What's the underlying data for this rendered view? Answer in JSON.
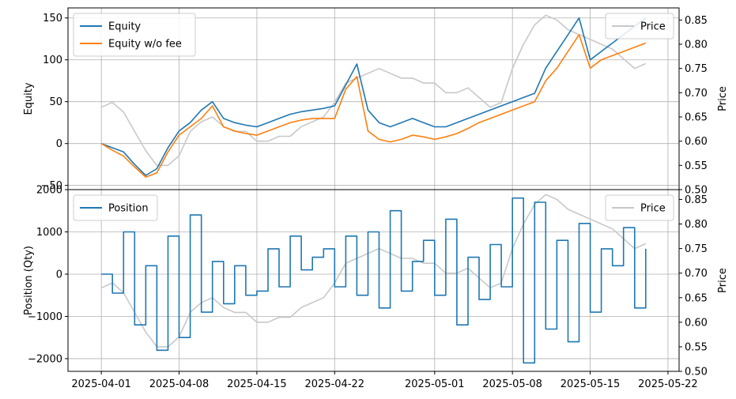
{
  "chart_data": [
    {
      "type": "line",
      "panel": "top",
      "title": "",
      "xlabel": "",
      "ylabel": "Equity",
      "y2label": "Price",
      "ylim": [
        -55,
        162
      ],
      "y2lim": [
        0.5,
        0.875
      ],
      "xlim": [
        "2025-03-29",
        "2025-05-23"
      ],
      "grid": true,
      "y_ticks": [
        -50,
        0,
        50,
        100,
        150
      ],
      "y2_ticks": [
        0.5,
        0.55,
        0.6,
        0.65,
        0.7,
        0.75,
        0.8,
        0.85
      ],
      "legend": {
        "left_position": "upper-left",
        "right_position": "upper-right"
      },
      "series": [
        {
          "name": "Equity",
          "axis": "left",
          "color": "#1f77b4",
          "x": [
            "2025-04-01",
            "2025-04-02",
            "2025-04-03",
            "2025-04-04",
            "2025-04-05",
            "2025-04-06",
            "2025-04-07",
            "2025-04-08",
            "2025-04-09",
            "2025-04-10",
            "2025-04-11",
            "2025-04-12",
            "2025-04-13",
            "2025-04-14",
            "2025-04-15",
            "2025-04-16",
            "2025-04-17",
            "2025-04-18",
            "2025-04-19",
            "2025-04-20",
            "2025-04-21",
            "2025-04-22",
            "2025-04-23",
            "2025-04-24",
            "2025-04-25",
            "2025-04-26",
            "2025-04-27",
            "2025-04-28",
            "2025-04-29",
            "2025-04-30",
            "2025-05-01",
            "2025-05-02",
            "2025-05-03",
            "2025-05-04",
            "2025-05-05",
            "2025-05-06",
            "2025-05-07",
            "2025-05-08",
            "2025-05-09",
            "2025-05-10",
            "2025-05-11",
            "2025-05-12",
            "2025-05-13",
            "2025-05-14",
            "2025-05-15",
            "2025-05-16",
            "2025-05-17",
            "2025-05-18",
            "2025-05-19",
            "2025-05-20"
          ],
          "y": [
            0,
            -5,
            -10,
            -25,
            -38,
            -30,
            -5,
            15,
            25,
            40,
            50,
            30,
            25,
            22,
            20,
            25,
            30,
            35,
            38,
            40,
            42,
            45,
            70,
            95,
            40,
            25,
            20,
            25,
            30,
            25,
            20,
            20,
            25,
            30,
            35,
            40,
            45,
            50,
            55,
            60,
            90,
            110,
            130,
            150,
            100,
            110,
            120,
            130,
            140,
            150
          ]
        },
        {
          "name": "Equity w/o fee",
          "axis": "left",
          "color": "#ff7f0e",
          "x": [
            "2025-04-01",
            "2025-04-02",
            "2025-04-03",
            "2025-04-04",
            "2025-04-05",
            "2025-04-06",
            "2025-04-07",
            "2025-04-08",
            "2025-04-09",
            "2025-04-10",
            "2025-04-11",
            "2025-04-12",
            "2025-04-13",
            "2025-04-14",
            "2025-04-15",
            "2025-04-16",
            "2025-04-17",
            "2025-04-18",
            "2025-04-19",
            "2025-04-20",
            "2025-04-21",
            "2025-04-22",
            "2025-04-23",
            "2025-04-24",
            "2025-04-25",
            "2025-04-26",
            "2025-04-27",
            "2025-04-28",
            "2025-04-29",
            "2025-04-30",
            "2025-05-01",
            "2025-05-02",
            "2025-05-03",
            "2025-05-04",
            "2025-05-05",
            "2025-05-06",
            "2025-05-07",
            "2025-05-08",
            "2025-05-09",
            "2025-05-10",
            "2025-05-11",
            "2025-05-12",
            "2025-05-13",
            "2025-05-14",
            "2025-05-15",
            "2025-05-16",
            "2025-05-17",
            "2025-05-18",
            "2025-05-19",
            "2025-05-20"
          ],
          "y": [
            0,
            -8,
            -15,
            -28,
            -40,
            -35,
            -10,
            10,
            20,
            30,
            45,
            20,
            15,
            12,
            10,
            15,
            20,
            25,
            28,
            30,
            30,
            30,
            65,
            80,
            15,
            5,
            2,
            5,
            10,
            8,
            5,
            8,
            12,
            18,
            25,
            30,
            35,
            40,
            45,
            50,
            75,
            90,
            110,
            130,
            90,
            100,
            105,
            110,
            115,
            120
          ]
        },
        {
          "name": "Price",
          "axis": "right",
          "color": "#c8c8c8",
          "x": [
            "2025-04-01",
            "2025-04-02",
            "2025-04-03",
            "2025-04-04",
            "2025-04-05",
            "2025-04-06",
            "2025-04-07",
            "2025-04-08",
            "2025-04-09",
            "2025-04-10",
            "2025-04-11",
            "2025-04-12",
            "2025-04-13",
            "2025-04-14",
            "2025-04-15",
            "2025-04-16",
            "2025-04-17",
            "2025-04-18",
            "2025-04-19",
            "2025-04-20",
            "2025-04-21",
            "2025-04-22",
            "2025-04-23",
            "2025-04-24",
            "2025-04-25",
            "2025-04-26",
            "2025-04-27",
            "2025-04-28",
            "2025-04-29",
            "2025-04-30",
            "2025-05-01",
            "2025-05-02",
            "2025-05-03",
            "2025-05-04",
            "2025-05-05",
            "2025-05-06",
            "2025-05-07",
            "2025-05-08",
            "2025-05-09",
            "2025-05-10",
            "2025-05-11",
            "2025-05-12",
            "2025-05-13",
            "2025-05-14",
            "2025-05-15",
            "2025-05-16",
            "2025-05-17",
            "2025-05-18",
            "2025-05-19",
            "2025-05-20"
          ],
          "y": [
            0.67,
            0.68,
            0.66,
            0.62,
            0.58,
            0.55,
            0.55,
            0.57,
            0.62,
            0.64,
            0.65,
            0.63,
            0.62,
            0.62,
            0.6,
            0.6,
            0.61,
            0.61,
            0.63,
            0.64,
            0.65,
            0.68,
            0.72,
            0.73,
            0.74,
            0.75,
            0.74,
            0.73,
            0.73,
            0.72,
            0.72,
            0.7,
            0.7,
            0.71,
            0.69,
            0.67,
            0.68,
            0.75,
            0.8,
            0.84,
            0.86,
            0.85,
            0.83,
            0.82,
            0.81,
            0.8,
            0.79,
            0.77,
            0.75,
            0.76
          ]
        }
      ]
    },
    {
      "type": "line",
      "panel": "bottom",
      "title": "",
      "xlabel": "",
      "ylabel": "Position (Qty)",
      "y2label": "Price",
      "ylim": [
        -2300,
        2000
      ],
      "y2lim": [
        0.5,
        0.87
      ],
      "xlim": [
        "2025-03-29",
        "2025-05-23"
      ],
      "grid": true,
      "y_ticks": [
        -2000,
        -1000,
        0,
        1000,
        2000
      ],
      "y2_ticks": [
        0.5,
        0.55,
        0.6,
        0.65,
        0.7,
        0.75,
        0.8,
        0.85
      ],
      "x_ticks": [
        "2025-04-01",
        "2025-04-08",
        "2025-04-15",
        "2025-04-22",
        "2025-05-01",
        "2025-05-08",
        "2025-05-15",
        "2025-05-22"
      ],
      "legend": {
        "left_position": "upper-left",
        "right_position": "upper-right"
      },
      "series": [
        {
          "name": "Position",
          "axis": "left",
          "color": "#1f77b4",
          "x": [
            "2025-04-01",
            "2025-04-02",
            "2025-04-03",
            "2025-04-04",
            "2025-04-05",
            "2025-04-06",
            "2025-04-07",
            "2025-04-08",
            "2025-04-09",
            "2025-04-10",
            "2025-04-11",
            "2025-04-12",
            "2025-04-13",
            "2025-04-14",
            "2025-04-15",
            "2025-04-16",
            "2025-04-17",
            "2025-04-18",
            "2025-04-19",
            "2025-04-20",
            "2025-04-21",
            "2025-04-22",
            "2025-04-23",
            "2025-04-24",
            "2025-04-25",
            "2025-04-26",
            "2025-04-27",
            "2025-04-28",
            "2025-04-29",
            "2025-04-30",
            "2025-05-01",
            "2025-05-02",
            "2025-05-03",
            "2025-05-04",
            "2025-05-05",
            "2025-05-06",
            "2025-05-07",
            "2025-05-08",
            "2025-05-09",
            "2025-05-10",
            "2025-05-11",
            "2025-05-12",
            "2025-05-13",
            "2025-05-14",
            "2025-05-15",
            "2025-05-16",
            "2025-05-17",
            "2025-05-18",
            "2025-05-19",
            "2025-05-20"
          ],
          "y": [
            0,
            -450,
            1000,
            -1200,
            200,
            -1800,
            900,
            -1500,
            1400,
            -900,
            300,
            -700,
            200,
            -500,
            -400,
            600,
            -300,
            900,
            100,
            400,
            600,
            -300,
            900,
            -500,
            1000,
            -800,
            1500,
            -400,
            300,
            800,
            -500,
            1300,
            -1200,
            400,
            -600,
            700,
            -300,
            1800,
            -2100,
            1700,
            -1300,
            800,
            -1600,
            1200,
            -900,
            600,
            200,
            1100,
            -800,
            600
          ]
        },
        {
          "name": "Price",
          "axis": "right",
          "color": "#c8c8c8",
          "x": [
            "2025-04-01",
            "2025-04-02",
            "2025-04-03",
            "2025-04-04",
            "2025-04-05",
            "2025-04-06",
            "2025-04-07",
            "2025-04-08",
            "2025-04-09",
            "2025-04-10",
            "2025-04-11",
            "2025-04-12",
            "2025-04-13",
            "2025-04-14",
            "2025-04-15",
            "2025-04-16",
            "2025-04-17",
            "2025-04-18",
            "2025-04-19",
            "2025-04-20",
            "2025-04-21",
            "2025-04-22",
            "2025-04-23",
            "2025-04-24",
            "2025-04-25",
            "2025-04-26",
            "2025-04-27",
            "2025-04-28",
            "2025-04-29",
            "2025-04-30",
            "2025-05-01",
            "2025-05-02",
            "2025-05-03",
            "2025-05-04",
            "2025-05-05",
            "2025-05-06",
            "2025-05-07",
            "2025-05-08",
            "2025-05-09",
            "2025-05-10",
            "2025-05-11",
            "2025-05-12",
            "2025-05-13",
            "2025-05-14",
            "2025-05-15",
            "2025-05-16",
            "2025-05-17",
            "2025-05-18",
            "2025-05-19",
            "2025-05-20"
          ],
          "y": [
            0.67,
            0.68,
            0.66,
            0.62,
            0.58,
            0.55,
            0.55,
            0.57,
            0.62,
            0.64,
            0.65,
            0.63,
            0.62,
            0.62,
            0.6,
            0.6,
            0.61,
            0.61,
            0.63,
            0.64,
            0.65,
            0.68,
            0.72,
            0.73,
            0.74,
            0.75,
            0.74,
            0.73,
            0.73,
            0.72,
            0.72,
            0.7,
            0.7,
            0.71,
            0.69,
            0.67,
            0.68,
            0.75,
            0.8,
            0.84,
            0.86,
            0.85,
            0.83,
            0.82,
            0.81,
            0.8,
            0.79,
            0.77,
            0.75,
            0.76
          ]
        }
      ]
    }
  ]
}
